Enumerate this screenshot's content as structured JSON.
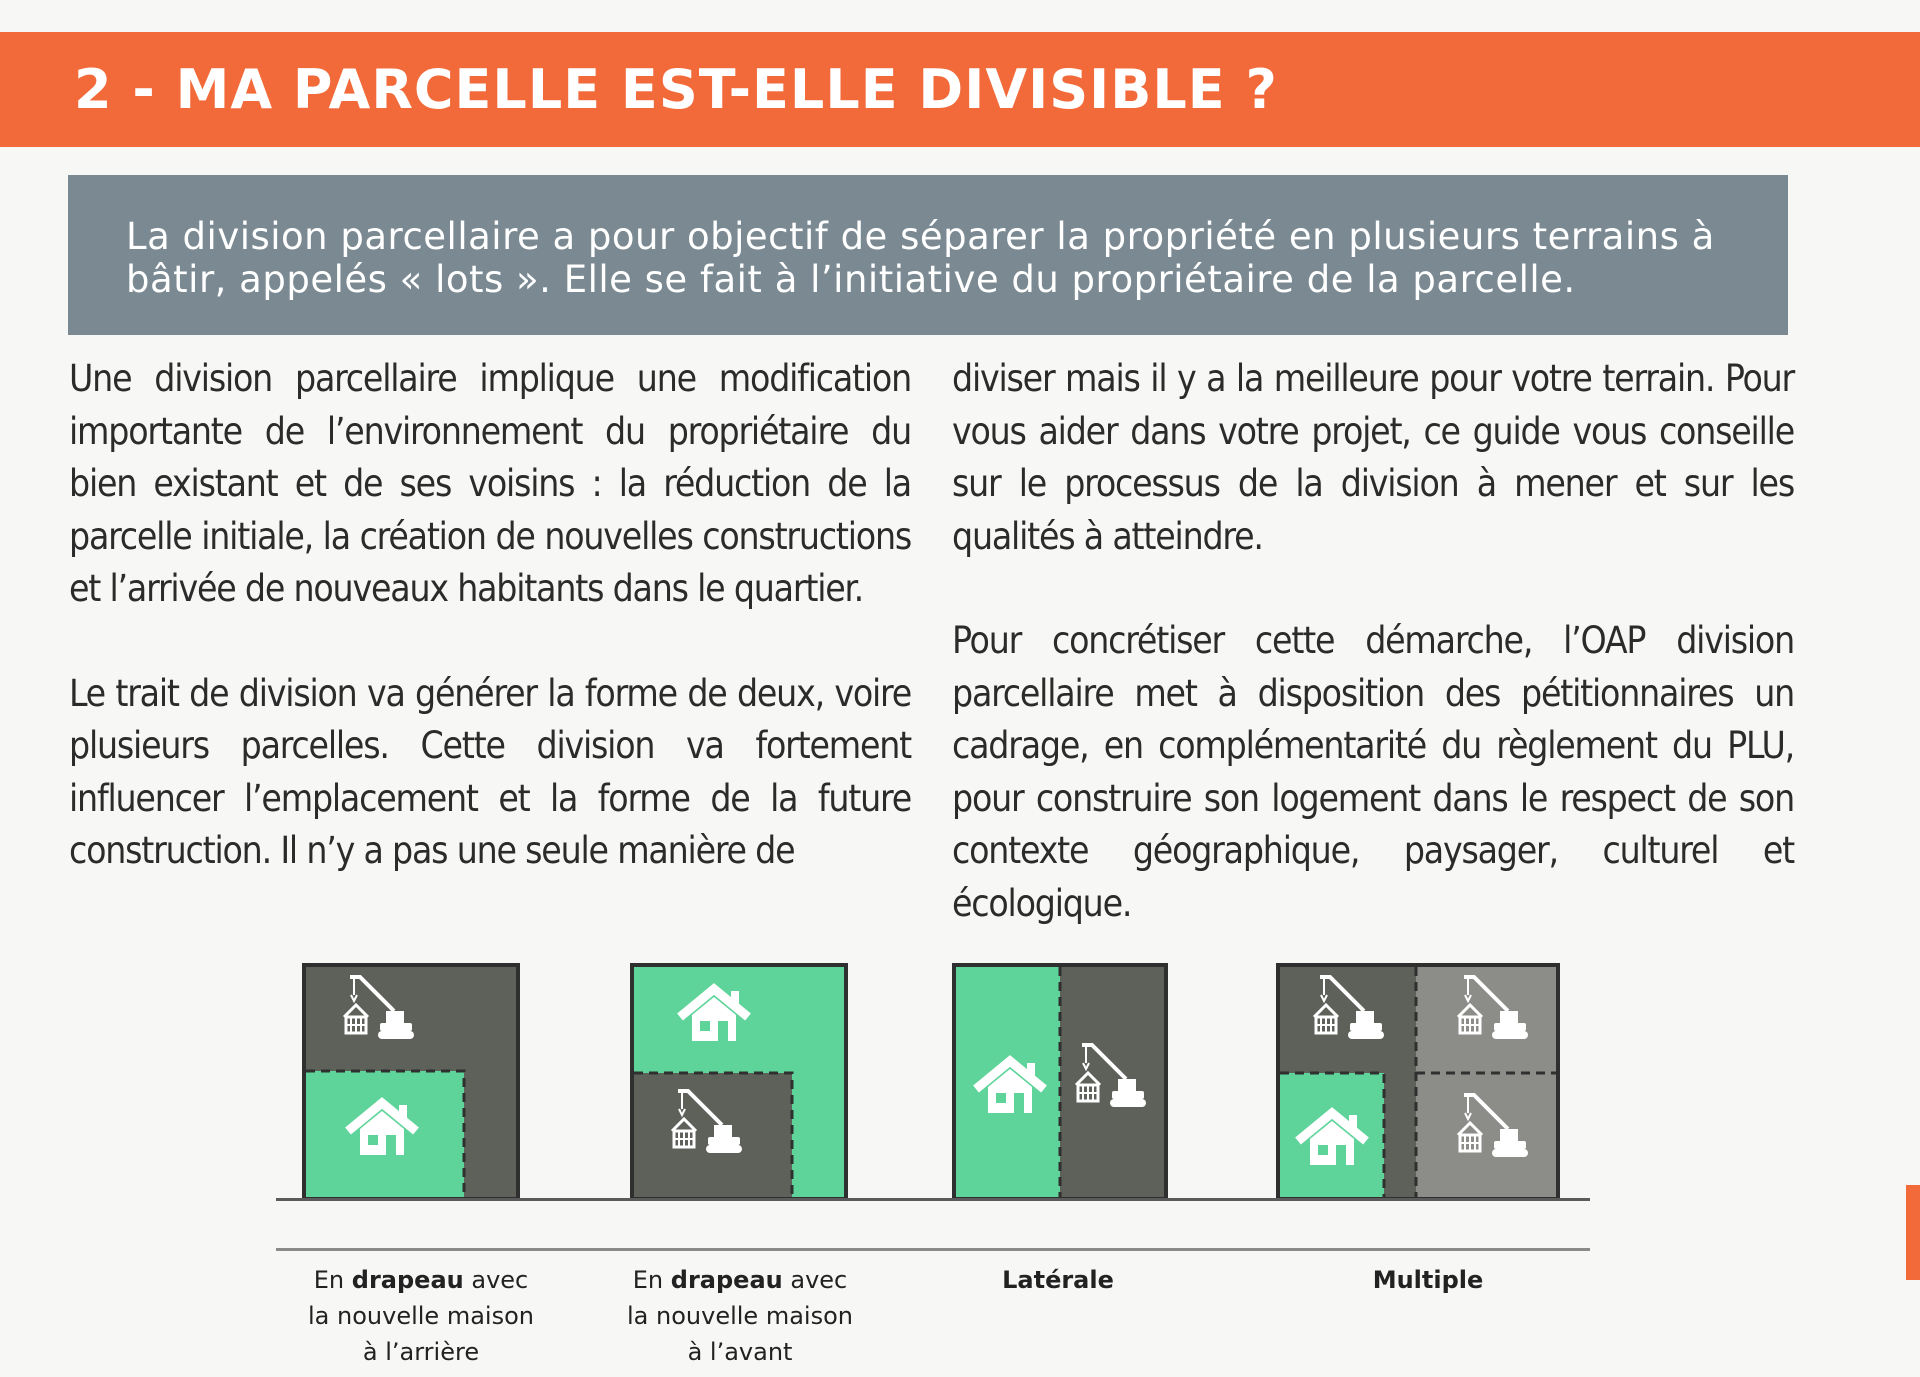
{
  "header": {
    "title": "2 - MA PARCELLE EST-ELLE DIVISIBLE ?"
  },
  "intro": {
    "text": "La division parcellaire a pour objectif de séparer la propriété en plusieurs terrains à bâtir, appelés « lots ». Elle se fait à l’initiative du propriétaire de la parcelle."
  },
  "body": {
    "left_p1": "Une division parcellaire implique une modification importante de l’environnement du propriétaire du bien existant et de ses voisins : la réduction de la parcelle initiale, la création de nouvelles constructions et l’arrivée de nouveaux habitants dans le quartier.",
    "left_p2": "Le trait de division va générer la forme de deux, voire plusieurs parcelles. Cette division va fortement influencer l’emplacement et la forme de la future construction. Il n’y a pas une seule manière de",
    "right_p1": "diviser mais il y a la meilleure pour votre terrain. Pour vous aider dans votre projet, ce guide vous conseille sur le processus de la division à mener et sur les qualités à atteindre.",
    "right_p2": "Pour concrétiser cette démarche, l’OAP division parcellaire met à disposition des pétitionnaires un cadrage, en complémentarité du règlement du PLU, pour construire son logement dans le respect de son contexte géographique, paysager, culturel et écologique."
  },
  "diagrams": [
    {
      "caption_pre": "En ",
      "caption_bold": "drapeau",
      "caption_post": " avec la nouvelle maison à l’arrière"
    },
    {
      "caption_pre": "En ",
      "caption_bold": "drapeau",
      "caption_post": " avec la nouvelle maison à l’avant"
    },
    {
      "caption_pre": "",
      "caption_bold": "Latérale",
      "caption_post": ""
    },
    {
      "caption_pre": "",
      "caption_bold": "Multiple",
      "caption_post": ""
    }
  ],
  "colors": {
    "accent": "#f26a3a",
    "intro_bg": "#7b8a92",
    "new_lot_green": "#5fd49a",
    "existing_dark": "#5e605a",
    "existing_grey": "#8c8c88"
  },
  "icons": [
    "house-icon",
    "crane-house-icon"
  ]
}
